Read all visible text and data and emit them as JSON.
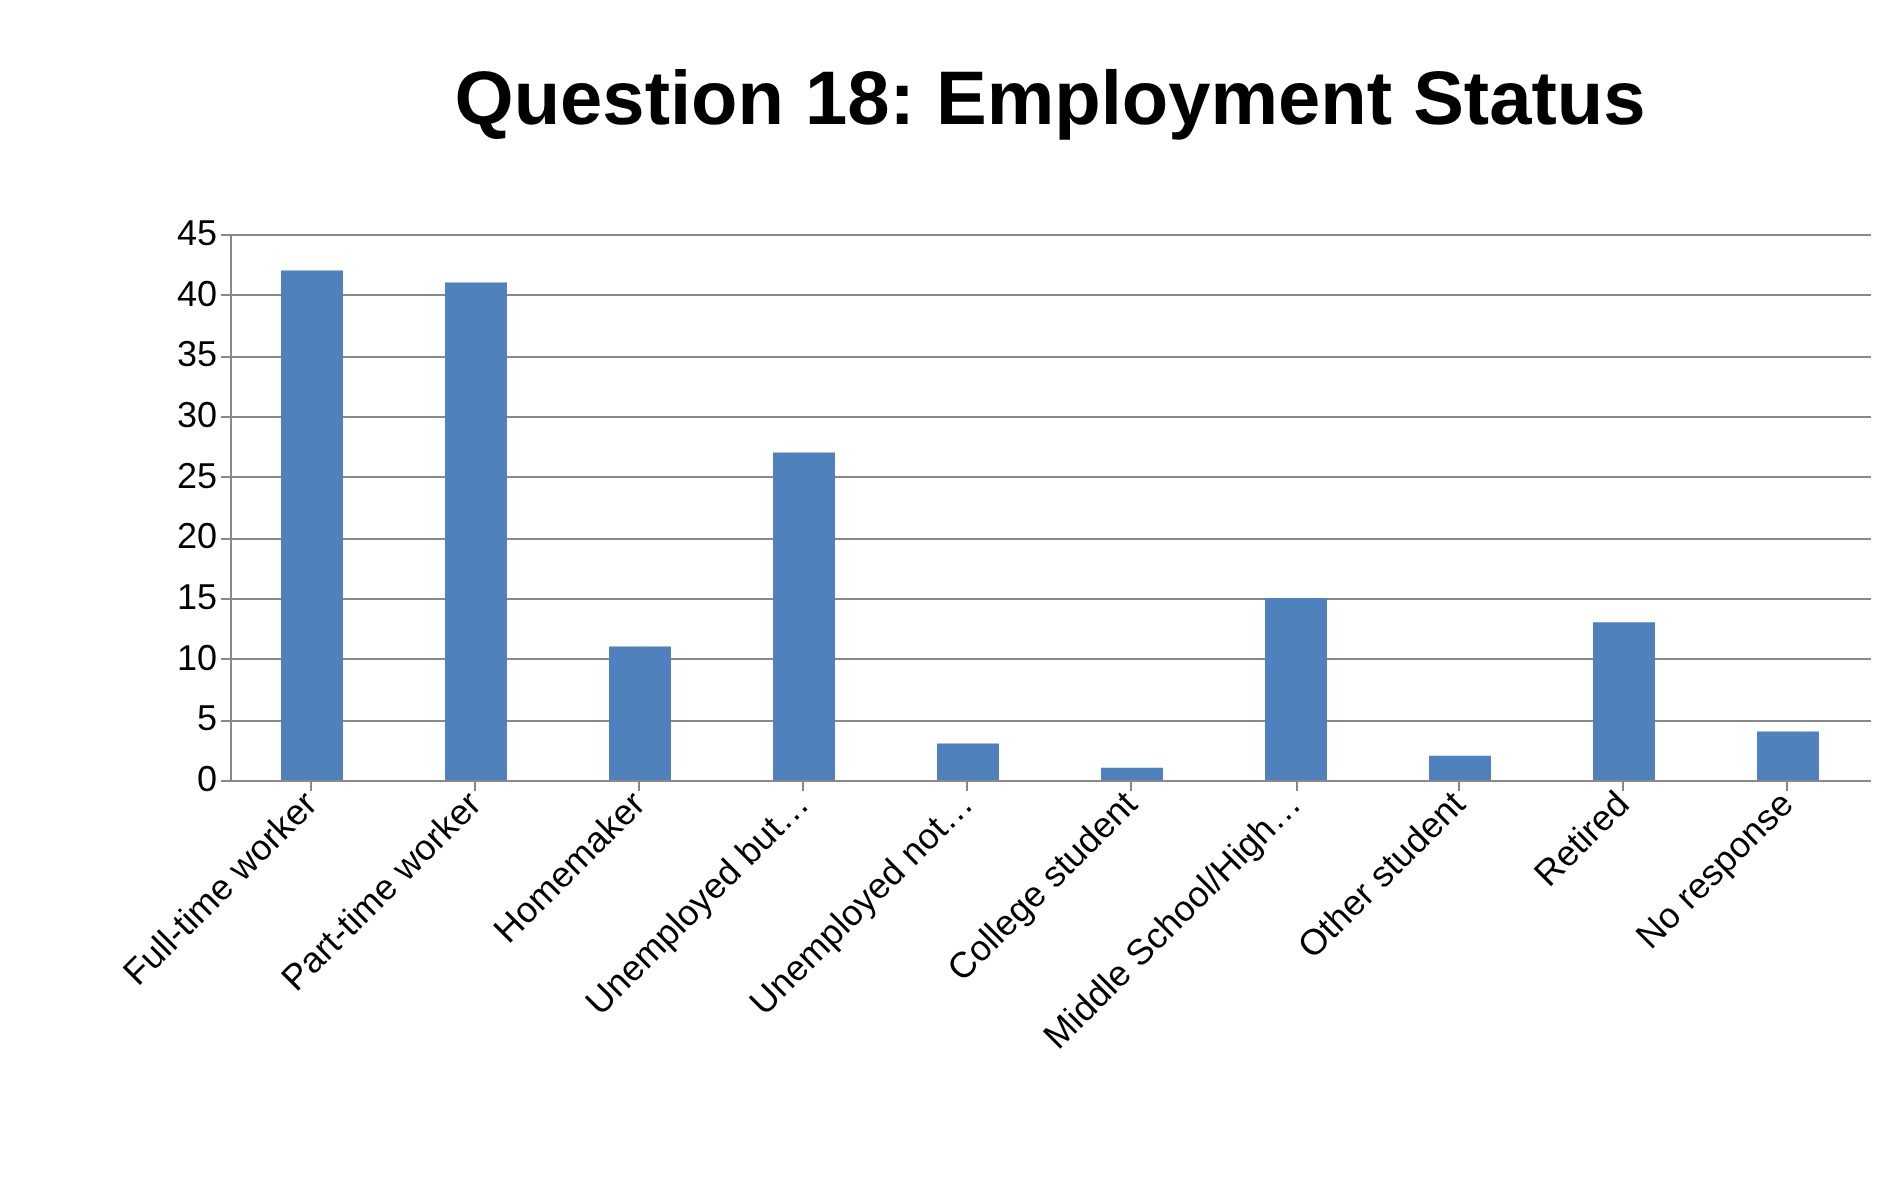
{
  "chart_data": {
    "type": "bar",
    "title": "Question 18: Employment Status",
    "categories": [
      "Full-time worker",
      "Part-time worker",
      "Homemaker",
      "Unemployed but…",
      "Unemployed not…",
      "College student",
      "Middle School/High…",
      "Other student",
      "Retired",
      "No response"
    ],
    "values": [
      42,
      41,
      11,
      27,
      3,
      1,
      15,
      2,
      13,
      4
    ],
    "color": "#4f81bd",
    "ylim": [
      0,
      45
    ],
    "yticks": [
      0,
      5,
      10,
      15,
      20,
      25,
      30,
      35,
      40,
      45
    ],
    "grid": "y"
  }
}
